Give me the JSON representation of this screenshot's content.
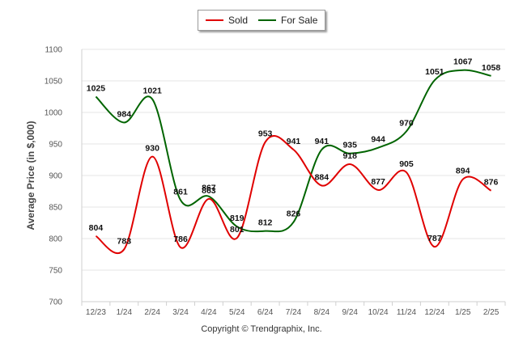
{
  "chart_data": {
    "type": "line",
    "categories": [
      "12/23",
      "1/24",
      "2/24",
      "3/24",
      "4/24",
      "5/24",
      "6/24",
      "7/24",
      "8/24",
      "9/24",
      "10/24",
      "11/24",
      "12/24",
      "1/25",
      "2/25"
    ],
    "series": [
      {
        "name": "Sold",
        "color": "#e00000",
        "values": [
          804,
          783,
          930,
          786,
          863,
          801,
          953,
          941,
          884,
          918,
          877,
          905,
          787,
          894,
          876
        ]
      },
      {
        "name": "For Sale",
        "color": "#006400",
        "values": [
          1025,
          984,
          1021,
          861,
          867,
          819,
          812,
          826,
          941,
          935,
          944,
          970,
          1051,
          1067,
          1058
        ]
      }
    ],
    "yticks": [
      700,
      750,
      800,
      850,
      900,
      950,
      1000,
      1050,
      1100
    ],
    "ylim": [
      700,
      1100
    ],
    "ylabel": "Average Price (in $,000)",
    "xlabel": "",
    "grid": true,
    "legend_position": "top-center"
  },
  "footer": {
    "copyright": "Copyright © Trendgraphix, Inc."
  }
}
